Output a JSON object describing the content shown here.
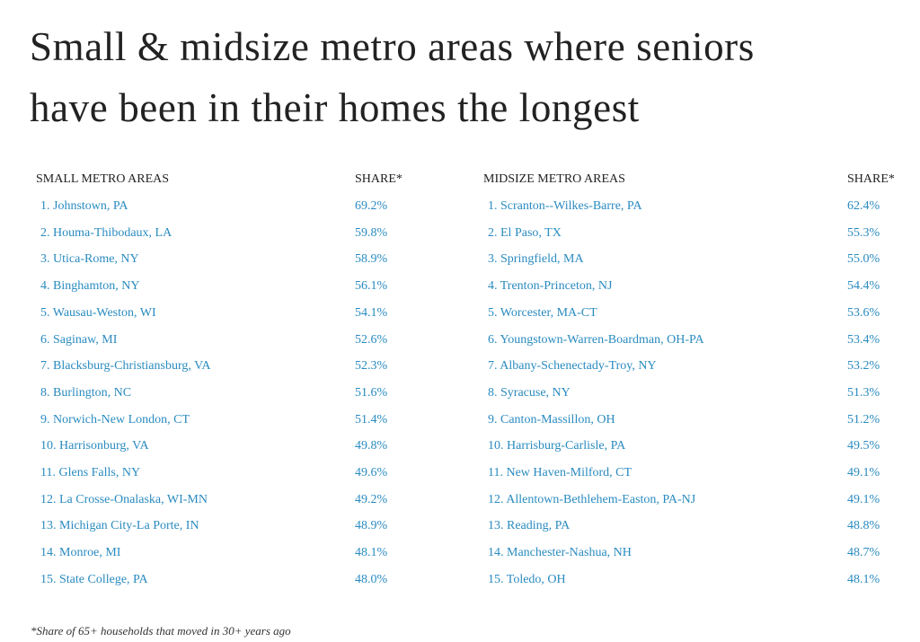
{
  "header": {
    "title_lines": [
      "Small & midsize metro areas where seniors",
      "have been in their homes the longest"
    ]
  },
  "tables": [
    {
      "headers": [
        "SMALL METRO AREAS",
        "SHARE*"
      ],
      "rows": [
        [
          "1. Johnstown, PA",
          "69.2%"
        ],
        [
          "2. Houma-Thibodaux, LA",
          "59.8%"
        ],
        [
          "3. Utica-Rome, NY",
          "58.9%"
        ],
        [
          "4. Binghamton, NY",
          "56.1%"
        ],
        [
          "5. Wausau-Weston, WI",
          "54.1%"
        ],
        [
          "6. Saginaw, MI",
          "52.6%"
        ],
        [
          "7. Blacksburg-Christiansburg, VA",
          "52.3%"
        ],
        [
          "8. Burlington, NC",
          "51.6%"
        ],
        [
          "9. Norwich-New London, CT",
          "51.4%"
        ],
        [
          "10. Harrisonburg, VA",
          "49.8%"
        ],
        [
          "11. Glens Falls, NY",
          "49.6%"
        ],
        [
          "12. La Crosse-Onalaska, WI-MN",
          "49.2%"
        ],
        [
          "13. Michigan City-La Porte, IN",
          "48.9%"
        ],
        [
          "14. Monroe, MI",
          "48.1%"
        ],
        [
          "15. State College, PA",
          "48.0%"
        ]
      ]
    },
    {
      "headers": [
        "MIDSIZE METRO AREAS",
        "SHARE*"
      ],
      "rows": [
        [
          "1. Scranton--Wilkes-Barre, PA",
          "62.4%"
        ],
        [
          "2. El Paso, TX",
          "55.3%"
        ],
        [
          "3. Springfield, MA",
          "55.0%"
        ],
        [
          "4. Trenton-Princeton, NJ",
          "54.4%"
        ],
        [
          "5. Worcester, MA-CT",
          "53.6%"
        ],
        [
          "6. Youngstown-Warren-Boardman, OH-PA",
          "53.4%"
        ],
        [
          "7. Albany-Schenectady-Troy, NY",
          "53.2%"
        ],
        [
          "8. Syracuse, NY",
          "51.3%"
        ],
        [
          "9. Canton-Massillon, OH",
          "51.2%"
        ],
        [
          "10. Harrisburg-Carlisle, PA",
          "49.5%"
        ],
        [
          "11. New Haven-Milford, CT",
          "49.1%"
        ],
        [
          "12. Allentown-Bethlehem-Easton, PA-NJ",
          "49.1%"
        ],
        [
          "13. Reading, PA",
          "48.8%"
        ],
        [
          "14. Manchester-Nashua, NH",
          "48.7%"
        ],
        [
          "15. Toledo, OH",
          "48.1%"
        ]
      ]
    }
  ],
  "footnote": "*Share of 65+ households that moved in 30+ years ago"
}
